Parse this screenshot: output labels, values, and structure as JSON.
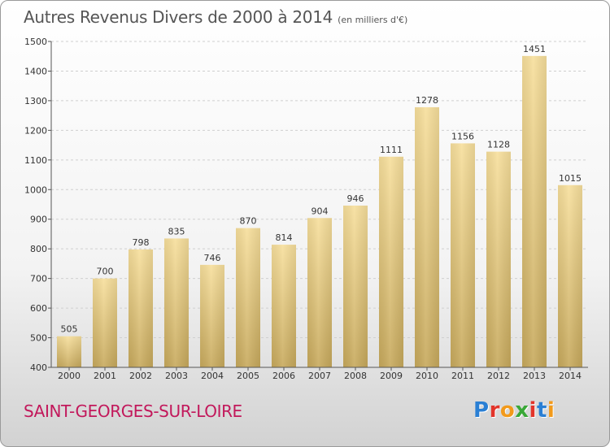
{
  "title": {
    "main": "Autres Revenus Divers de 2000 à 2014",
    "unit": "(en milliers d'€)"
  },
  "place_name": "SAINT-GEORGES-SUR-LOIRE",
  "logo": {
    "text": "Proxiti",
    "letters": [
      {
        "ch": "P",
        "color": "#2a7fd4"
      },
      {
        "ch": "r",
        "color": "#e2342a"
      },
      {
        "ch": "o",
        "color": "#f29a1b"
      },
      {
        "ch": "x",
        "color": "#3aa838"
      },
      {
        "ch": "i",
        "color": "#e2342a"
      },
      {
        "ch": "t",
        "color": "#2a7fd4"
      },
      {
        "ch": "i",
        "color": "#f29a1b"
      }
    ]
  },
  "colors": {
    "bar_light": "#f7df9c",
    "bar_dark": "#c7a95c",
    "grid": "#cfcfcf",
    "axis": "#555555",
    "text": "#333333"
  },
  "chart_data": {
    "type": "bar",
    "categories": [
      "2000",
      "2001",
      "2002",
      "2003",
      "2004",
      "2005",
      "2006",
      "2007",
      "2008",
      "2009",
      "2010",
      "2011",
      "2012",
      "2013",
      "2014"
    ],
    "values": [
      505,
      700,
      798,
      835,
      746,
      870,
      814,
      904,
      946,
      1111,
      1278,
      1156,
      1128,
      1451,
      1015
    ],
    "title": "Autres Revenus Divers de 2000 à 2014",
    "xlabel": "",
    "ylabel": "",
    "ylim": [
      400,
      1500
    ],
    "yticks": [
      400,
      500,
      600,
      700,
      800,
      900,
      1000,
      1100,
      1200,
      1300,
      1400,
      1500
    ],
    "grid": true,
    "data_labels": true
  }
}
